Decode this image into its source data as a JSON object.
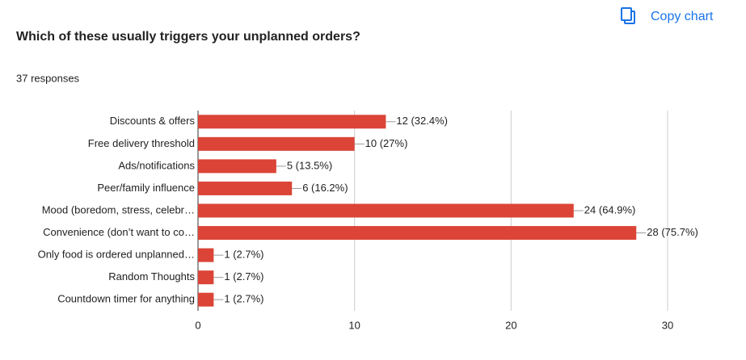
{
  "toolbar": {
    "copy_button": "Copy chart"
  },
  "chart_data": {
    "type": "hbar",
    "title": "Which of these usually triggers your unplanned orders?",
    "subtitle": "37 responses",
    "categories": [
      "Discounts & offers",
      "Free delivery threshold",
      "Ads/notifications",
      "Peer/family influence",
      "Mood (boredom, stress, celebr…",
      "Convenience (don’t want to co…",
      "Only food is ordered unplanned…",
      "Random Thoughts",
      "Countdown timer for anything"
    ],
    "values": [
      12,
      10,
      5,
      6,
      24,
      28,
      1,
      1,
      1
    ],
    "value_labels": [
      "12 (32.4%)",
      "10 (27%)",
      "5 (13.5%)",
      "6 (16.2%)",
      "24 (64.9%)",
      "28 (75.7%)",
      "1 (2.7%)",
      "1 (2.7%)",
      "1 (2.7%)"
    ],
    "color": "#db4437",
    "xlim": [
      0,
      30
    ],
    "xticks": [
      0,
      10,
      20,
      30
    ],
    "grid": true
  }
}
